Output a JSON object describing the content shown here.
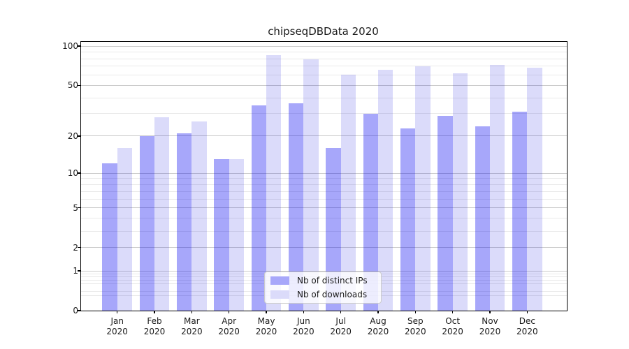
{
  "chart_data": {
    "type": "bar",
    "title": "chipseqDBData 2020",
    "categories": [
      "Jan",
      "Feb",
      "Mar",
      "Apr",
      "May",
      "Jun",
      "Jul",
      "Aug",
      "Sep",
      "Oct",
      "Nov",
      "Dec"
    ],
    "category_sublabel": "2020",
    "series": [
      {
        "name": "Nb of distinct IPs",
        "color": "#a7a7fa",
        "fill_rgba": "rgba(0,0,241,0.345)",
        "values": [
          12,
          20,
          21,
          13,
          35,
          36,
          16,
          30,
          23,
          29,
          24,
          31
        ]
      },
      {
        "name": "Nb of downloads",
        "color": "#dbdbfa",
        "fill_rgba": "rgba(0,0,220,0.141)",
        "values": [
          16,
          28,
          26,
          13,
          85,
          79,
          60,
          66,
          70,
          62,
          72,
          68
        ]
      }
    ],
    "yscale": "log1p",
    "ylim": [
      0,
      107
    ],
    "ytick_labels": [
      "0",
      "1",
      "2",
      "5",
      "10",
      "20",
      "50",
      "100"
    ],
    "ytick_values": [
      0,
      1,
      2,
      5,
      10,
      20,
      50,
      100
    ],
    "yminor_gridlines": [
      0.3,
      0.4,
      0.6,
      0.7,
      0.8,
      0.9,
      3,
      4,
      6,
      7,
      8,
      9,
      30,
      40,
      60,
      70,
      80,
      90
    ],
    "grid": "on",
    "legend_position": "lower center",
    "colors": {
      "major_grid": "#cccccc",
      "minor_grid": "#e9e9e9",
      "axis": "#000000",
      "text": "#1a1a1a",
      "background": "#ffffff"
    }
  }
}
